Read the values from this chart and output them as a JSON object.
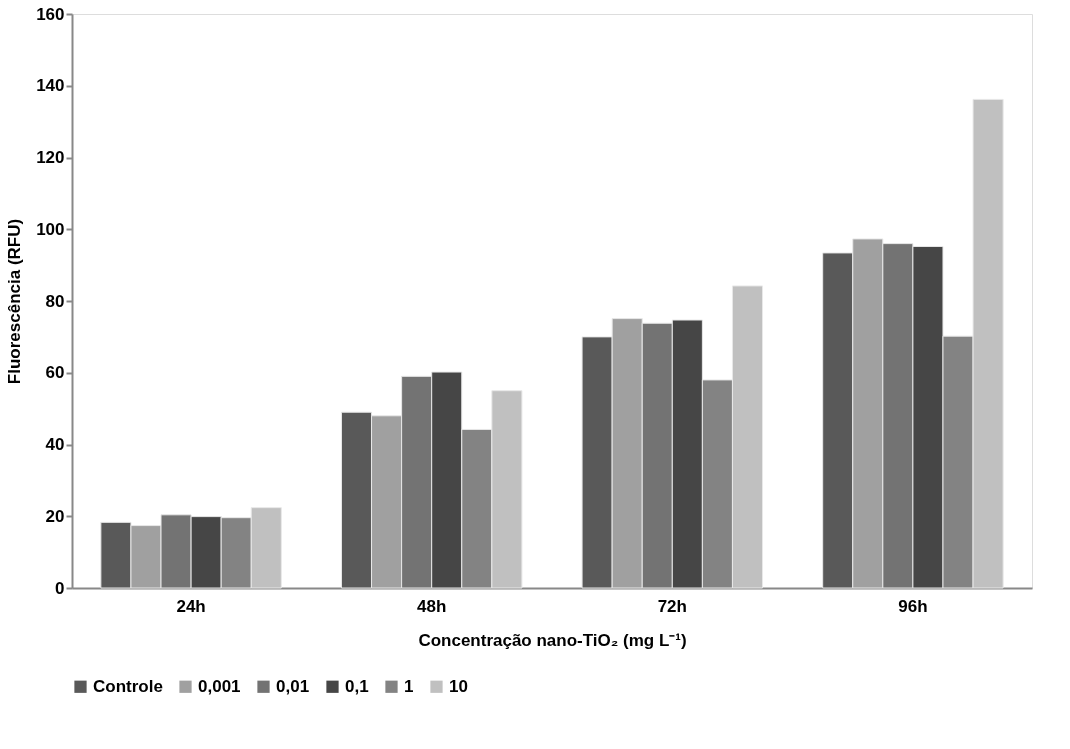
{
  "chart_data": {
    "type": "bar",
    "xlabel": "Concentração nano-TiO₂ (mg L⁻¹)",
    "ylabel": "Fluorescência (RFU)",
    "categories": [
      "24h",
      "48h",
      "72h",
      "96h"
    ],
    "series": [
      {
        "name": "Controle",
        "color": "#595959",
        "values": [
          18.3,
          49,
          70,
          93.4
        ]
      },
      {
        "name": "0,001",
        "color": "#a0a0a0",
        "values": [
          17.4,
          48,
          75.1,
          97.3
        ]
      },
      {
        "name": "0,01",
        "color": "#737373",
        "values": [
          20.4,
          59,
          73.8,
          96
        ]
      },
      {
        "name": "0,1",
        "color": "#464646",
        "values": [
          19.9,
          60.2,
          74.7,
          95.2
        ]
      },
      {
        "name": "1",
        "color": "#838383",
        "values": [
          19.6,
          44.2,
          58,
          70.2
        ]
      },
      {
        "name": "10",
        "color": "#c0c0c0",
        "values": [
          22.4,
          55,
          84.2,
          136.2
        ]
      }
    ],
    "ylim": [
      0,
      160
    ],
    "yticks": [
      0,
      20,
      40,
      60,
      80,
      100,
      120,
      140,
      160
    ],
    "grid": false,
    "legend": "bottom"
  }
}
